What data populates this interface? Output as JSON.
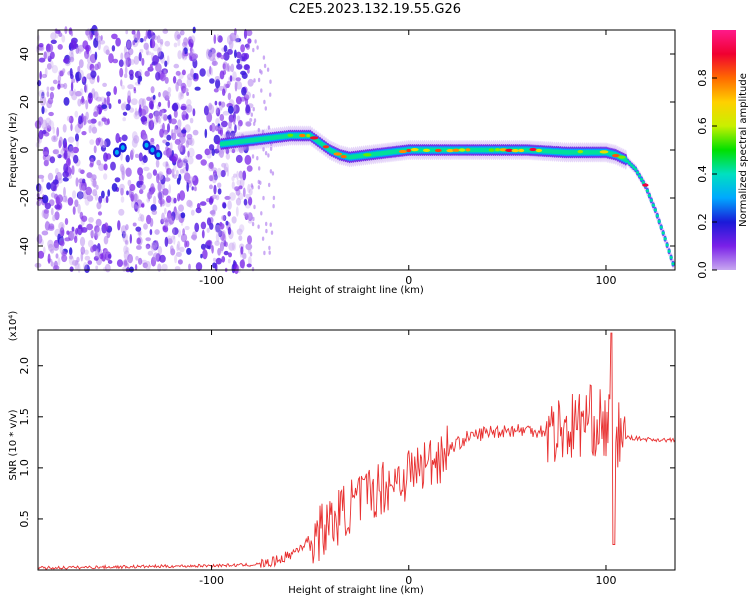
{
  "title": "C2E5.2023.132.19.55.G26",
  "chart_data": [
    {
      "type": "heatmap",
      "xlabel": "Height of straight line (km)",
      "ylabel": "Frequency (Hz)",
      "xlim": [
        -188,
        135
      ],
      "ylim": [
        -50,
        50
      ],
      "x_ticks": [
        "-100",
        "0",
        "100"
      ],
      "y_ticks": [
        "-40",
        "-20",
        "0",
        "20",
        "40"
      ],
      "colorbar": {
        "label": "Normalized spectral amplitude",
        "range": [
          0,
          1
        ],
        "ticks": [
          "0.0",
          "0.2",
          "0.4",
          "0.6",
          "0.8"
        ],
        "colormap": [
          "#c8a8f0",
          "#7a20e8",
          "#1a1ad8",
          "#00a8ff",
          "#00e0c0",
          "#00e000",
          "#c8f000",
          "#ffd000",
          "#ff6a00",
          "#f00030",
          "#ff1a8a"
        ]
      },
      "ridge_x": [
        -100,
        -90,
        -80,
        -70,
        -60,
        -50,
        -45,
        -40,
        -35,
        -30,
        -20,
        -10,
        0,
        20,
        40,
        60,
        80,
        95,
        100,
        105,
        110,
        115,
        120,
        125,
        130,
        135
      ],
      "ridge_y": [
        2,
        3,
        4,
        5,
        6,
        6,
        3,
        0,
        -2,
        -3,
        -2,
        -1,
        0,
        0,
        0,
        0,
        -1,
        -1,
        -1,
        -2,
        -4,
        -8,
        -15,
        -25,
        -37,
        -50
      ],
      "grid": false
    },
    {
      "type": "line",
      "xlabel": "Height of straight line (km)",
      "ylabel": "SNR (10 * v/v)",
      "y_multiplier": "(x10⁴)",
      "xlim": [
        -188,
        135
      ],
      "ylim": [
        0,
        2.35
      ],
      "x_ticks": [
        "-100",
        "0",
        "100"
      ],
      "y_ticks": [
        "0.5",
        "1.0",
        "1.5",
        "2.0"
      ],
      "series": [
        {
          "color": "#e83030",
          "x": [
            -188,
            -150,
            -110,
            -80,
            -70,
            -60,
            -50,
            -40,
            -30,
            -20,
            -10,
            0,
            10,
            20,
            30,
            40,
            50,
            60,
            70,
            80,
            85,
            90,
            95,
            100,
            103,
            106,
            110,
            120,
            135
          ],
          "y": [
            0.02,
            0.03,
            0.04,
            0.05,
            0.07,
            0.15,
            0.3,
            0.45,
            0.62,
            0.75,
            0.85,
            0.95,
            1.05,
            1.18,
            1.3,
            1.35,
            1.37,
            1.37,
            1.36,
            1.38,
            1.42,
            1.48,
            1.45,
            1.4,
            1.5,
            1.32,
            1.3,
            1.28,
            1.27
          ]
        }
      ],
      "grid": false
    }
  ]
}
